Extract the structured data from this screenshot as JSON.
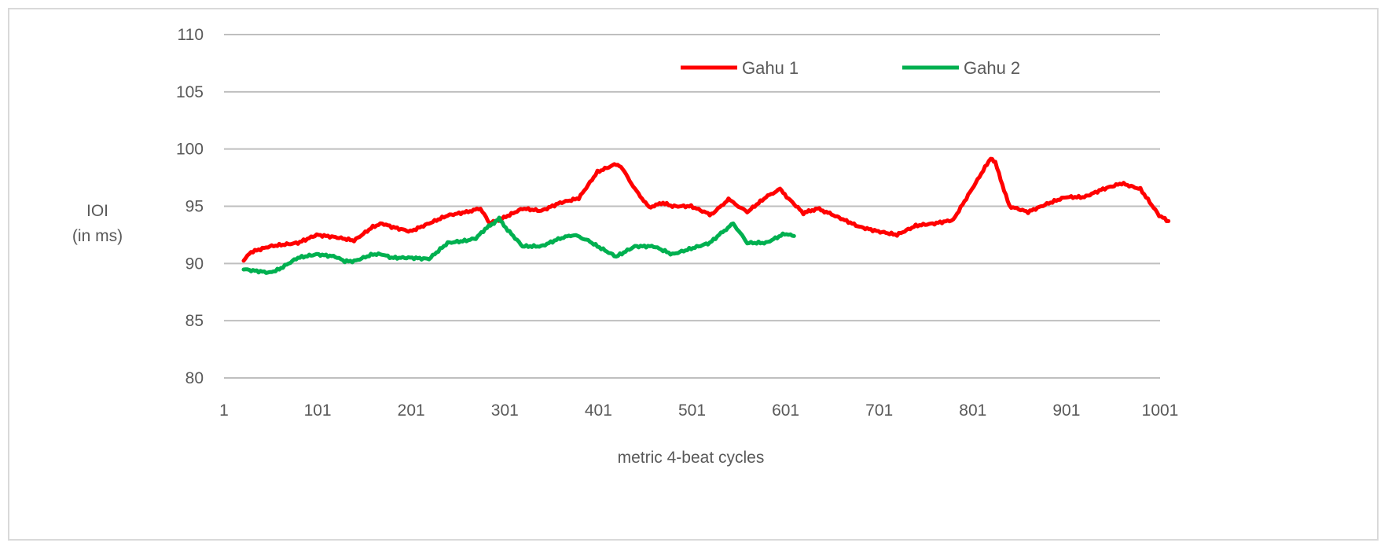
{
  "chart_data": {
    "type": "line",
    "title": "",
    "xlabel": "metric 4-beat cycles",
    "ylabel_lines": [
      "IOI",
      "(in ms)"
    ],
    "xlim": [
      1,
      1001
    ],
    "ylim": [
      80,
      110
    ],
    "x_ticks": [
      "1",
      "101",
      "201",
      "301",
      "401",
      "501",
      "601",
      "701",
      "801",
      "901",
      "1001"
    ],
    "y_ticks": [
      "110",
      "105",
      "100",
      "95",
      "90",
      "85",
      "80"
    ],
    "grid": true,
    "legend_position": "top-right",
    "series": [
      {
        "name": "Gahu 1",
        "color": "#ff0000",
        "x": [
          22,
          30,
          50,
          60,
          80,
          100,
          120,
          140,
          160,
          170,
          180,
          200,
          220,
          240,
          260,
          275,
          285,
          300,
          320,
          340,
          360,
          380,
          400,
          420,
          425,
          440,
          455,
          470,
          480,
          500,
          520,
          525,
          540,
          545,
          560,
          580,
          595,
          600,
          620,
          635,
          650,
          680,
          700,
          720,
          740,
          760,
          780,
          800,
          820,
          825,
          840,
          860,
          880,
          900,
          920,
          940,
          960,
          980,
          1000,
          1010
        ],
        "y": [
          90.3,
          91.0,
          91.5,
          91.6,
          91.8,
          92.5,
          92.3,
          92.0,
          93.2,
          93.5,
          93.2,
          92.8,
          93.5,
          94.2,
          94.5,
          94.8,
          93.5,
          94.0,
          94.8,
          94.6,
          95.3,
          95.7,
          98.0,
          98.7,
          98.5,
          96.5,
          94.9,
          95.3,
          95.0,
          95.0,
          94.3,
          94.5,
          95.6,
          95.3,
          94.5,
          95.8,
          96.5,
          96.0,
          94.4,
          94.8,
          94.3,
          93.2,
          92.8,
          92.5,
          93.3,
          93.5,
          93.8,
          96.5,
          99.2,
          98.8,
          95.0,
          94.5,
          95.2,
          95.8,
          95.8,
          96.5,
          97.0,
          96.5,
          94.2,
          93.7
        ]
      },
      {
        "name": "Gahu 2",
        "color": "#00b050",
        "x": [
          22,
          30,
          50,
          60,
          80,
          100,
          120,
          130,
          140,
          160,
          170,
          180,
          200,
          220,
          240,
          260,
          270,
          280,
          295,
          300,
          320,
          340,
          360,
          375,
          390,
          400,
          420,
          440,
          460,
          480,
          500,
          520,
          530,
          545,
          560,
          580,
          600,
          610
        ],
        "y": [
          89.5,
          89.4,
          89.2,
          89.5,
          90.5,
          90.8,
          90.6,
          90.2,
          90.2,
          90.8,
          90.8,
          90.5,
          90.5,
          90.4,
          91.8,
          92.0,
          92.2,
          93.0,
          93.9,
          93.3,
          91.5,
          91.5,
          92.2,
          92.5,
          92.0,
          91.5,
          90.6,
          91.5,
          91.5,
          90.8,
          91.3,
          91.8,
          92.5,
          93.5,
          91.8,
          91.8,
          92.6,
          92.4
        ]
      }
    ]
  }
}
